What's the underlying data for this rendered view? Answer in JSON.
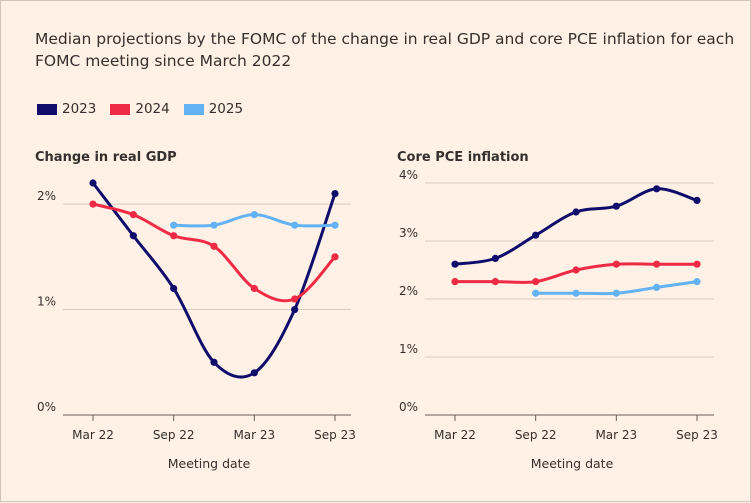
{
  "title": "Median projections by the FOMC of the change in real GDP and core PCE inflation for each FOMC meeting since March 2022",
  "legend": [
    {
      "label": "2023",
      "color": "#0f0d6b"
    },
    {
      "label": "2024",
      "color": "#ee2a45"
    },
    {
      "label": "2025",
      "color": "#63b3f4"
    }
  ],
  "chart_data": [
    {
      "type": "line",
      "title": "Change in real GDP",
      "xlabel": "Meeting date",
      "ylabel": "",
      "x": [
        "Mar 22",
        "Jun 22",
        "Sep 22",
        "Dec 22",
        "Mar 23",
        "Jun 23",
        "Sep 23"
      ],
      "xticks": [
        "Mar 22",
        "Sep 22",
        "Mar 23",
        "Sep 23"
      ],
      "yticks": [
        "0%",
        "1%",
        "2%"
      ],
      "ylim": [
        0,
        2.2
      ],
      "series": [
        {
          "name": "2023",
          "color": "#0f0d6b",
          "values": [
            2.2,
            1.7,
            1.2,
            0.5,
            0.4,
            1.0,
            2.1
          ]
        },
        {
          "name": "2024",
          "color": "#ee2a45",
          "values": [
            2.0,
            1.9,
            1.7,
            1.6,
            1.2,
            1.1,
            1.5
          ]
        },
        {
          "name": "2025",
          "color": "#63b3f4",
          "values": [
            null,
            null,
            1.8,
            1.8,
            1.9,
            1.8,
            1.8
          ]
        }
      ]
    },
    {
      "type": "line",
      "title": "Core PCE inflation",
      "xlabel": "Meeting date",
      "ylabel": "",
      "x": [
        "Mar 22",
        "Jun 22",
        "Sep 22",
        "Dec 22",
        "Mar 23",
        "Jun 23",
        "Sep 23"
      ],
      "xticks": [
        "Mar 22",
        "Sep 22",
        "Mar 23",
        "Sep 23"
      ],
      "yticks": [
        "0%",
        "1%",
        "2%",
        "3%",
        "4%"
      ],
      "ylim": [
        0,
        4
      ],
      "series": [
        {
          "name": "2023",
          "color": "#0f0d6b",
          "values": [
            2.6,
            2.7,
            3.1,
            3.5,
            3.6,
            3.9,
            3.7
          ]
        },
        {
          "name": "2024",
          "color": "#ee2a45",
          "values": [
            2.3,
            2.3,
            2.3,
            2.5,
            2.6,
            2.6,
            2.6
          ]
        },
        {
          "name": "2025",
          "color": "#63b3f4",
          "values": [
            null,
            null,
            2.1,
            2.1,
            2.1,
            2.2,
            2.3
          ]
        }
      ]
    }
  ]
}
